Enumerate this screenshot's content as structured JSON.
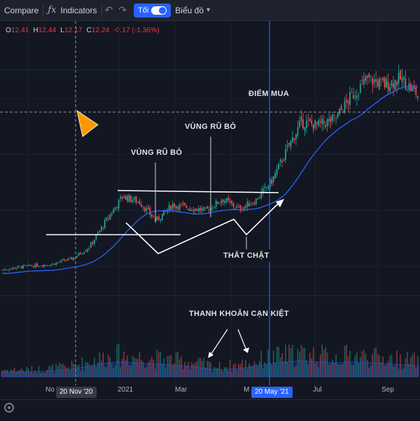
{
  "toolbar": {
    "compare": "Compare",
    "indicators": "Indicators",
    "toggle_label": "Tối",
    "chart_menu": "Biểu đồ"
  },
  "ohlc": {
    "o_key": "O",
    "o": "12.41",
    "h_key": "H",
    "h": "12.44",
    "l_key": "L",
    "l": "12.17",
    "c_key": "C",
    "c": "12.24",
    "chg": "-0.17 (-1.36%)"
  },
  "x_axis": {
    "labels": [
      {
        "text": "No",
        "pos": 0
      },
      {
        "text": "2021",
        "pos": 1
      },
      {
        "text": "Mar",
        "pos": 2
      },
      {
        "text": "M",
        "pos": 3
      },
      {
        "text": "Jul",
        "pos": 4
      },
      {
        "text": "Sep",
        "pos": 5
      }
    ],
    "crosshair_date": "20 Nov '20",
    "marker_date": "20 May '21"
  },
  "annotations": {
    "buy_point": "ĐIỂM MUA",
    "shakeout_1": "VỦNG RŨ BỎ",
    "shakeout_2": "VÙNG RŨ BỎ",
    "tightening": "THẮT CHẶT",
    "volume_dry": "THANH KHOẢN CẠN KIỆT"
  },
  "colors": {
    "up": "#26a69a",
    "down": "#ef5350",
    "ma": "#2962ff",
    "accent": "#2962ff",
    "cursor": "#ff9800",
    "background": "#131722"
  },
  "chart_data": {
    "type": "candlestick",
    "period": "Oct 2020 – Oct 2021",
    "close_trend": [
      {
        "t": 0,
        "c": 2.2
      },
      {
        "t": 0.04,
        "c": 2.4
      },
      {
        "t": 0.08,
        "c": 2.5
      },
      {
        "t": 0.12,
        "c": 2.6
      },
      {
        "t": 0.17,
        "c": 3.0
      },
      {
        "t": 0.21,
        "c": 3.8
      },
      {
        "t": 0.25,
        "c": 5.6
      },
      {
        "t": 0.29,
        "c": 7.3
      },
      {
        "t": 0.33,
        "c": 6.9
      },
      {
        "t": 0.37,
        "c": 5.6
      },
      {
        "t": 0.41,
        "c": 6.7
      },
      {
        "t": 0.45,
        "c": 6.5
      },
      {
        "t": 0.49,
        "c": 6.3
      },
      {
        "t": 0.53,
        "c": 7.1
      },
      {
        "t": 0.57,
        "c": 6.4
      },
      {
        "t": 0.61,
        "c": 7.0
      },
      {
        "t": 0.65,
        "c": 8.4
      },
      {
        "t": 0.69,
        "c": 10.8
      },
      {
        "t": 0.72,
        "c": 12.4
      },
      {
        "t": 0.76,
        "c": 12.2
      },
      {
        "t": 0.8,
        "c": 12.6
      },
      {
        "t": 0.84,
        "c": 14.2
      },
      {
        "t": 0.88,
        "c": 15.4
      },
      {
        "t": 0.92,
        "c": 15.0
      },
      {
        "t": 0.96,
        "c": 15.4
      },
      {
        "t": 1.0,
        "c": 14.3
      }
    ],
    "volume_trend": [
      0.25,
      0.25,
      0.25,
      0.3,
      0.35,
      0.5,
      0.65,
      0.75,
      0.7,
      0.65,
      0.6,
      0.55,
      0.45,
      0.35,
      0.4,
      0.5,
      0.65,
      0.75,
      0.8,
      0.75,
      0.7,
      0.75,
      0.7,
      0.65,
      0.6,
      0.55
    ],
    "moving_average": true,
    "grid": true
  }
}
